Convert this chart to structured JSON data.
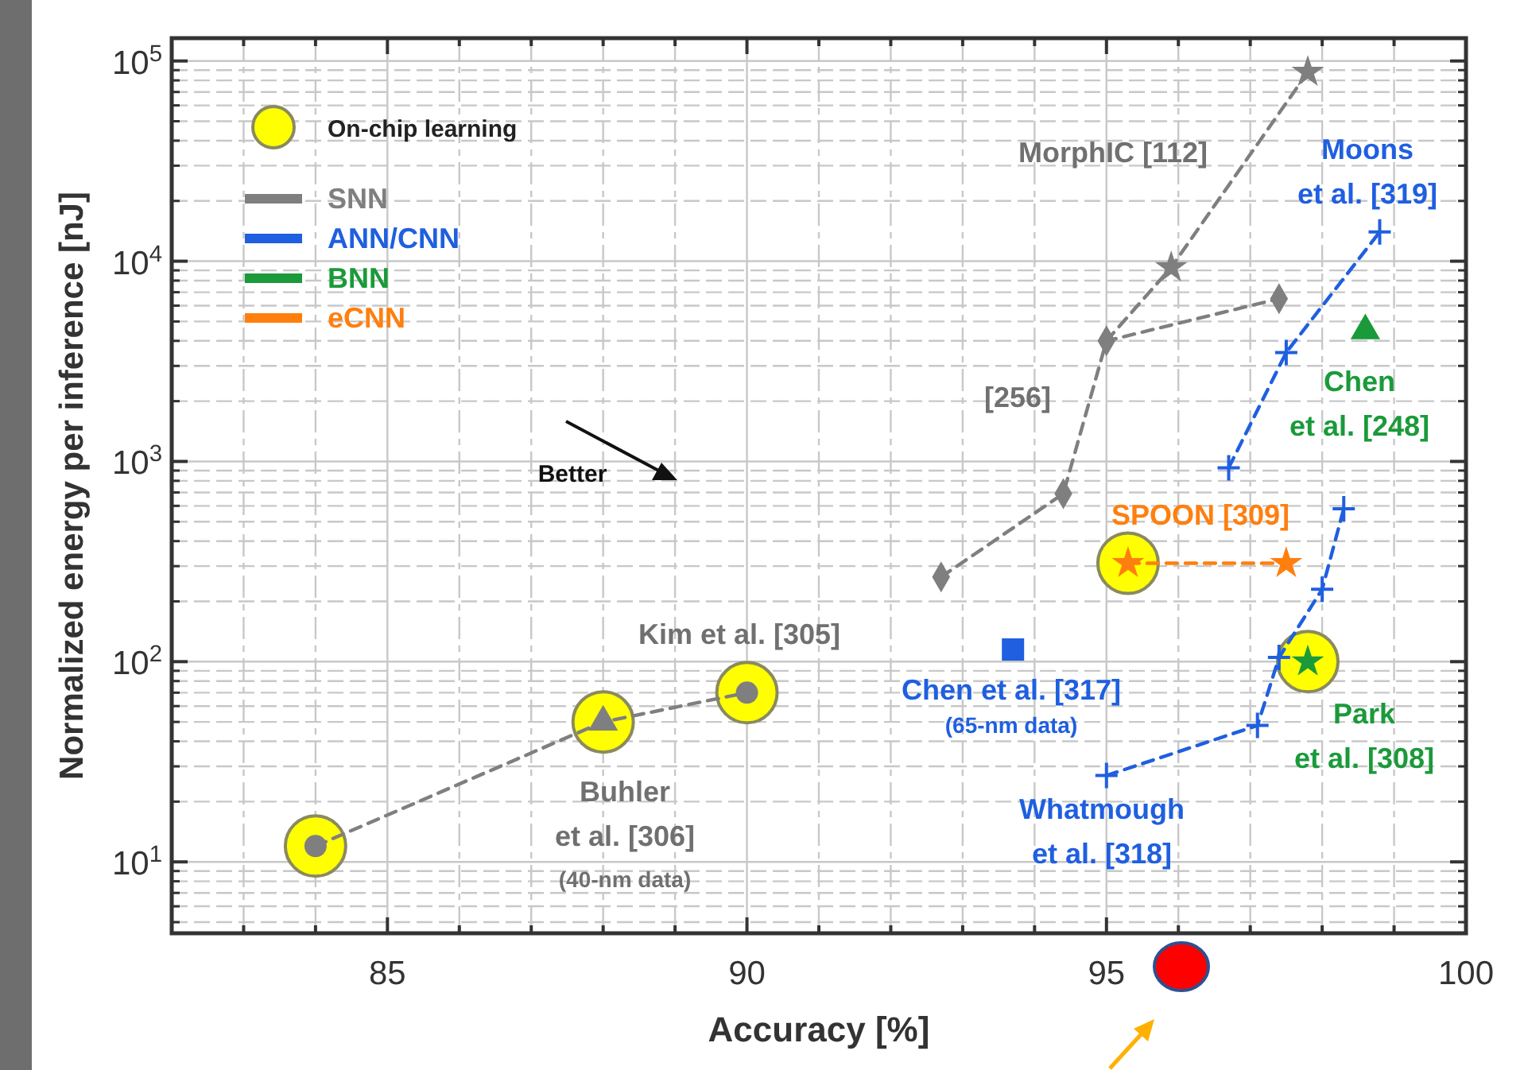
{
  "chart_data": {
    "type": "scatter",
    "xlabel": "Accuracy [%]",
    "ylabel": "Normalized energy per inference [nJ]",
    "xlim": [
      82,
      100
    ],
    "xticks": [
      {
        "value": 83,
        "label": null
      },
      {
        "value": 84,
        "label": null
      },
      85,
      {
        "value": 86,
        "label": null
      },
      {
        "value": 87,
        "label": null
      },
      {
        "value": 88,
        "label": null
      },
      {
        "value": 89,
        "label": null
      },
      90,
      {
        "value": 91,
        "label": null
      },
      {
        "value": 92,
        "label": null
      },
      {
        "value": 93,
        "label": null
      },
      {
        "value": 94,
        "label": null
      },
      95,
      {
        "value": 96,
        "label": null
      },
      {
        "value": 97,
        "label": null
      },
      {
        "value": 98,
        "label": null
      },
      {
        "value": 99,
        "label": null
      },
      100
    ],
    "ylim": [
      4.4,
      130000
    ],
    "yticks": [
      {
        "value": 10,
        "label": "10$^{1}$"
      },
      {
        "value": 100,
        "label": "10$^{2}$"
      },
      {
        "value": 1000,
        "label": "10$^{3}$"
      },
      {
        "value": 10000,
        "label": "10$^{4}$"
      },
      {
        "value": 100000,
        "label": "10$^{5}$"
      }
    ],
    "log": "y",
    "grid": true,
    "legend": "top left",
    "series": [
      {
        "name": "On-chip learning",
        "marker": "circle",
        "color": "#ffff00",
        "x": [
          84,
          88,
          90,
          95.3,
          97.8
        ],
        "values": [
          12,
          50,
          70,
          310,
          100
        ]
      },
      {
        "type": "line",
        "marker": "none",
        "line_style": "dashed",
        "color": "#7f7f7f",
        "x": [
          84,
          88,
          90
        ],
        "values": [
          12,
          50,
          70
        ]
      },
      {
        "name": "SNN",
        "type": "line",
        "marker": "diamond",
        "line_style": "dashed",
        "color": "#7f7f7f",
        "x": [
          92.7,
          94.4,
          95,
          97.4
        ],
        "values": [
          265,
          690,
          4000,
          6500
        ]
      },
      {
        "type": "line",
        "marker": "none",
        "line_style": "dashed",
        "color": "#7f7f7f",
        "x": [
          95,
          95.9,
          97.8
        ],
        "values": [
          4000,
          9300,
          88000
        ]
      },
      {
        "marker": "star",
        "color": "#7f7f7f",
        "x": [
          95.9,
          97.8
        ],
        "values": [
          9300,
          88000
        ]
      },
      {
        "marker": "circle",
        "color": "#7f7f7f",
        "x": [
          84,
          90
        ],
        "values": [
          12,
          70
        ]
      },
      {
        "marker": "triangle",
        "color": "#7f7f7f",
        "x": [
          88
        ],
        "values": [
          50
        ]
      },
      {
        "name": "ANN/CNN",
        "type": "line",
        "marker": "cross",
        "line_style": "dashed",
        "color": "#1f5fe0",
        "x": [
          96.7,
          97.5,
          98.8
        ],
        "values": [
          930,
          3500,
          14000
        ]
      },
      {
        "type": "line",
        "marker": "cross",
        "line_style": "dashed",
        "color": "#1f5fe0",
        "x": [
          95,
          97.1,
          97.4,
          98,
          98.3
        ],
        "values": [
          27,
          48,
          105,
          230,
          580
        ]
      },
      {
        "marker": "square",
        "color": "#1f5fe0",
        "x": [
          93.7
        ],
        "values": [
          115
        ]
      },
      {
        "name": "BNN",
        "marker": "triangle",
        "color": "#1a9a3a",
        "x": [
          98.6
        ],
        "values": [
          4500
        ]
      },
      {
        "marker": "star",
        "color": "#1a9a3a",
        "x": [
          97.8
        ],
        "values": [
          100
        ]
      },
      {
        "name": "eCNN",
        "type": "line",
        "marker": "star",
        "line_style": "dashed",
        "color": "#ff7f0e",
        "x": [
          95.3,
          97.5
        ],
        "values": [
          310,
          310
        ]
      }
    ],
    "annotations": [
      "MorphIC [112]",
      "Moons\net al. [319]",
      "[256]",
      "Chen\net al. [248]",
      "Better",
      "SPOON [309]",
      "Kim et al. [305]",
      "Chen et al. [317]",
      "(65-nm data)",
      "Buhler\net al. [306]",
      "(40-nm data)",
      "Whatmough\net al. [318]",
      "Park\net al. [308]"
    ]
  }
}
